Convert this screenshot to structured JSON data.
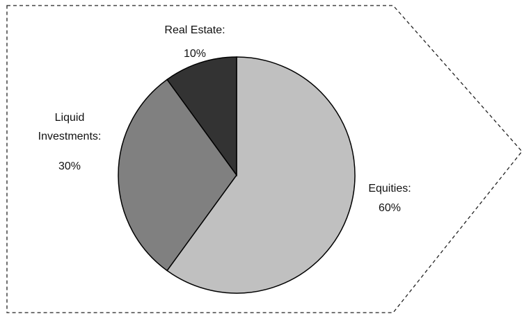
{
  "chart_data": {
    "type": "pie",
    "categories": [
      "Equities:",
      "Liquid Investments:",
      "Real Estate:"
    ],
    "values": [
      60,
      30,
      10
    ],
    "value_labels": [
      "60%",
      "30%",
      "10%"
    ],
    "colors": [
      "#c0c0c0",
      "#808080",
      "#333333"
    ]
  }
}
